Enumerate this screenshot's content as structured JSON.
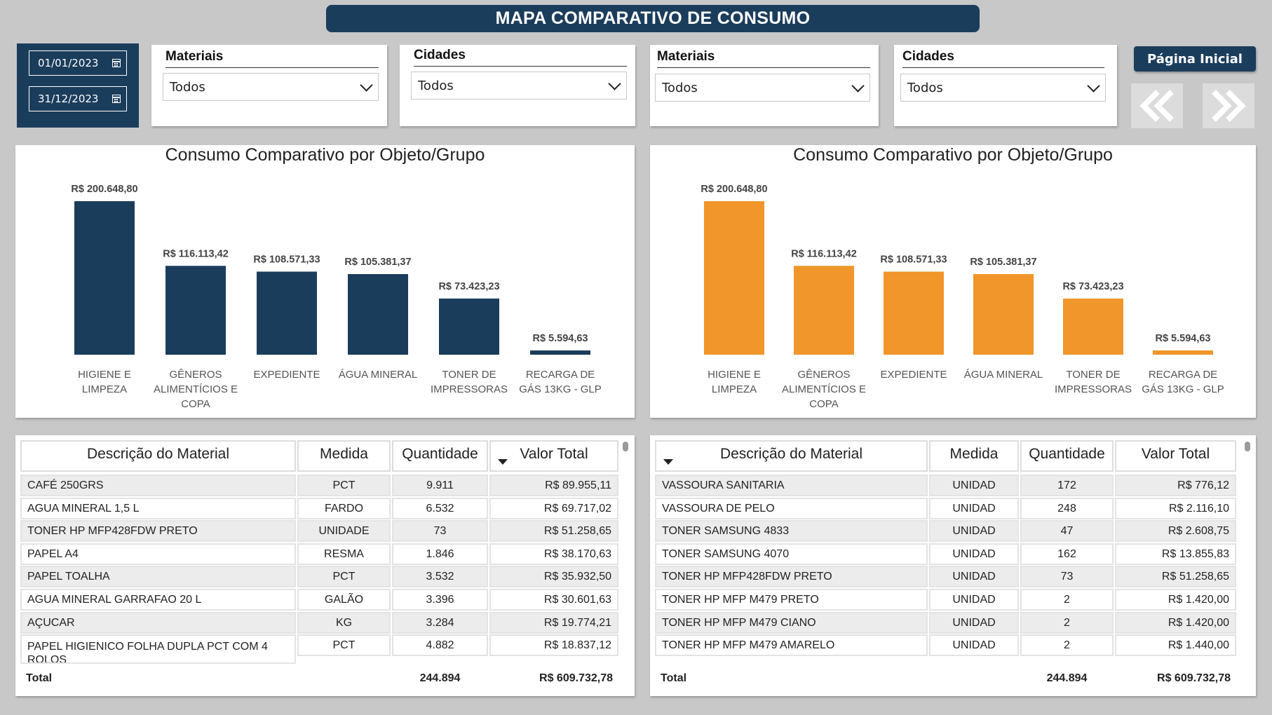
{
  "title": "MAPA COMPARATIVO DE CONSUMO",
  "dates": {
    "start": "01/01/2023",
    "end": "31/12/2023"
  },
  "slicers": [
    {
      "title": "Materiais",
      "value": "Todos"
    },
    {
      "title": "Cidades",
      "value": "Todos"
    },
    {
      "title": "Materiais",
      "value": "Todos"
    },
    {
      "title": "Cidades",
      "value": "Todos"
    }
  ],
  "home_button": "Página Inicial",
  "colors": {
    "navy": "#1b3d5c",
    "orange": "#f0962a"
  },
  "chart_data": [
    {
      "type": "bar",
      "title": "Consumo Comparativo por Objeto/Grupo",
      "color": "#1b3d5c",
      "categories": [
        "HIGIENE E LIMPEZA",
        "GÊNEROS ALIMENTÍCIOS E COPA",
        "EXPEDIENTE",
        "ÁGUA MINERAL",
        "TONER DE IMPRESSORAS",
        "RECARGA DE GÁS 13KG - GLP"
      ],
      "category_lines": [
        [
          "HIGIENE E",
          "LIMPEZA"
        ],
        [
          "GÊNEROS",
          "ALIMENTÍCIOS E",
          "COPA"
        ],
        [
          "EXPEDIENTE"
        ],
        [
          "ÁGUA MINERAL"
        ],
        [
          "TONER DE",
          "IMPRESSORAS"
        ],
        [
          "RECARGA DE",
          "GÁS 13KG - GLP"
        ]
      ],
      "values": [
        200648.8,
        116113.42,
        108571.33,
        105381.37,
        73423.23,
        5594.63
      ],
      "labels": [
        "R$ 200.648,80",
        "R$ 116.113,42",
        "R$ 108.571,33",
        "R$ 105.381,37",
        "R$ 73.423,23",
        "R$ 5.594,63"
      ]
    },
    {
      "type": "bar",
      "title": "Consumo Comparativo por Objeto/Grupo",
      "color": "#f0962a",
      "categories": [
        "HIGIENE E LIMPEZA",
        "GÊNEROS ALIMENTÍCIOS E COPA",
        "EXPEDIENTE",
        "ÁGUA MINERAL",
        "TONER DE IMPRESSORAS",
        "RECARGA DE GÁS 13KG - GLP"
      ],
      "category_lines": [
        [
          "HIGIENE E",
          "LIMPEZA"
        ],
        [
          "GÊNEROS",
          "ALIMENTÍCIOS E",
          "COPA"
        ],
        [
          "EXPEDIENTE"
        ],
        [
          "ÁGUA MINERAL"
        ],
        [
          "TONER DE",
          "IMPRESSORAS"
        ],
        [
          "RECARGA DE",
          "GÁS 13KG - GLP"
        ]
      ],
      "values": [
        200648.8,
        116113.42,
        108571.33,
        105381.37,
        73423.23,
        5594.63
      ],
      "labels": [
        "R$ 200.648,80",
        "R$ 116.113,42",
        "R$ 108.571,33",
        "R$ 105.381,37",
        "R$ 73.423,23",
        "R$ 5.594,63"
      ]
    }
  ],
  "tables": [
    {
      "headers": [
        "Descrição do Material",
        "Medida",
        "Quantidade",
        "Valor Total"
      ],
      "rows": [
        [
          "CAFÉ 250GRS",
          "PCT",
          "9.911",
          "R$ 89.955,11"
        ],
        [
          "AGUA MINERAL 1,5 L",
          "FARDO",
          "6.532",
          "R$ 69.717,02"
        ],
        [
          "TONER HP MFP428FDW PRETO",
          "UNIDADE",
          "73",
          "R$ 51.258,65"
        ],
        [
          "PAPEL A4",
          "RESMA",
          "1.846",
          "R$ 38.170,63"
        ],
        [
          "PAPEL TOALHA",
          "PCT",
          "3.532",
          "R$ 35.932,50"
        ],
        [
          "AGUA MINERAL GARRAFAO 20 L",
          "GALÃO",
          "3.396",
          "R$ 30.601,63"
        ],
        [
          "AÇUCAR",
          "KG",
          "3.284",
          "R$ 19.774,21"
        ],
        [
          "PAPEL HIGIENICO FOLHA DUPLA PCT COM 4 ROLOS",
          "PCT",
          "4.882",
          "R$ 18.837,12"
        ]
      ],
      "total": [
        "Total",
        "",
        "244.894",
        "R$ 609.732,78"
      ]
    },
    {
      "headers": [
        "Descrição do Material",
        "Medida",
        "Quantidade",
        "Valor Total"
      ],
      "rows": [
        [
          "VASSOURA SANITARIA",
          "UNIDAD",
          "172",
          "R$ 776,12"
        ],
        [
          "VASSOURA DE PELO",
          "UNIDAD",
          "248",
          "R$ 2.116,10"
        ],
        [
          "TONER SAMSUNG 4833",
          "UNIDAD",
          "47",
          "R$ 2.608,75"
        ],
        [
          "TONER SAMSUNG 4070",
          "UNIDAD",
          "162",
          "R$ 13.855,83"
        ],
        [
          "TONER HP MFP428FDW PRETO",
          "UNIDAD",
          "73",
          "R$ 51.258,65"
        ],
        [
          "TONER HP MFP M479 PRETO",
          "UNIDAD",
          "2",
          "R$ 1.420,00"
        ],
        [
          "TONER HP MFP M479 CIANO",
          "UNIDAD",
          "2",
          "R$ 1.420,00"
        ],
        [
          "TONER HP MFP M479 AMARELO",
          "UNIDAD",
          "2",
          "R$ 1.440,00"
        ]
      ],
      "total": [
        "Total",
        "",
        "244.894",
        "R$ 609.732,78"
      ]
    }
  ]
}
